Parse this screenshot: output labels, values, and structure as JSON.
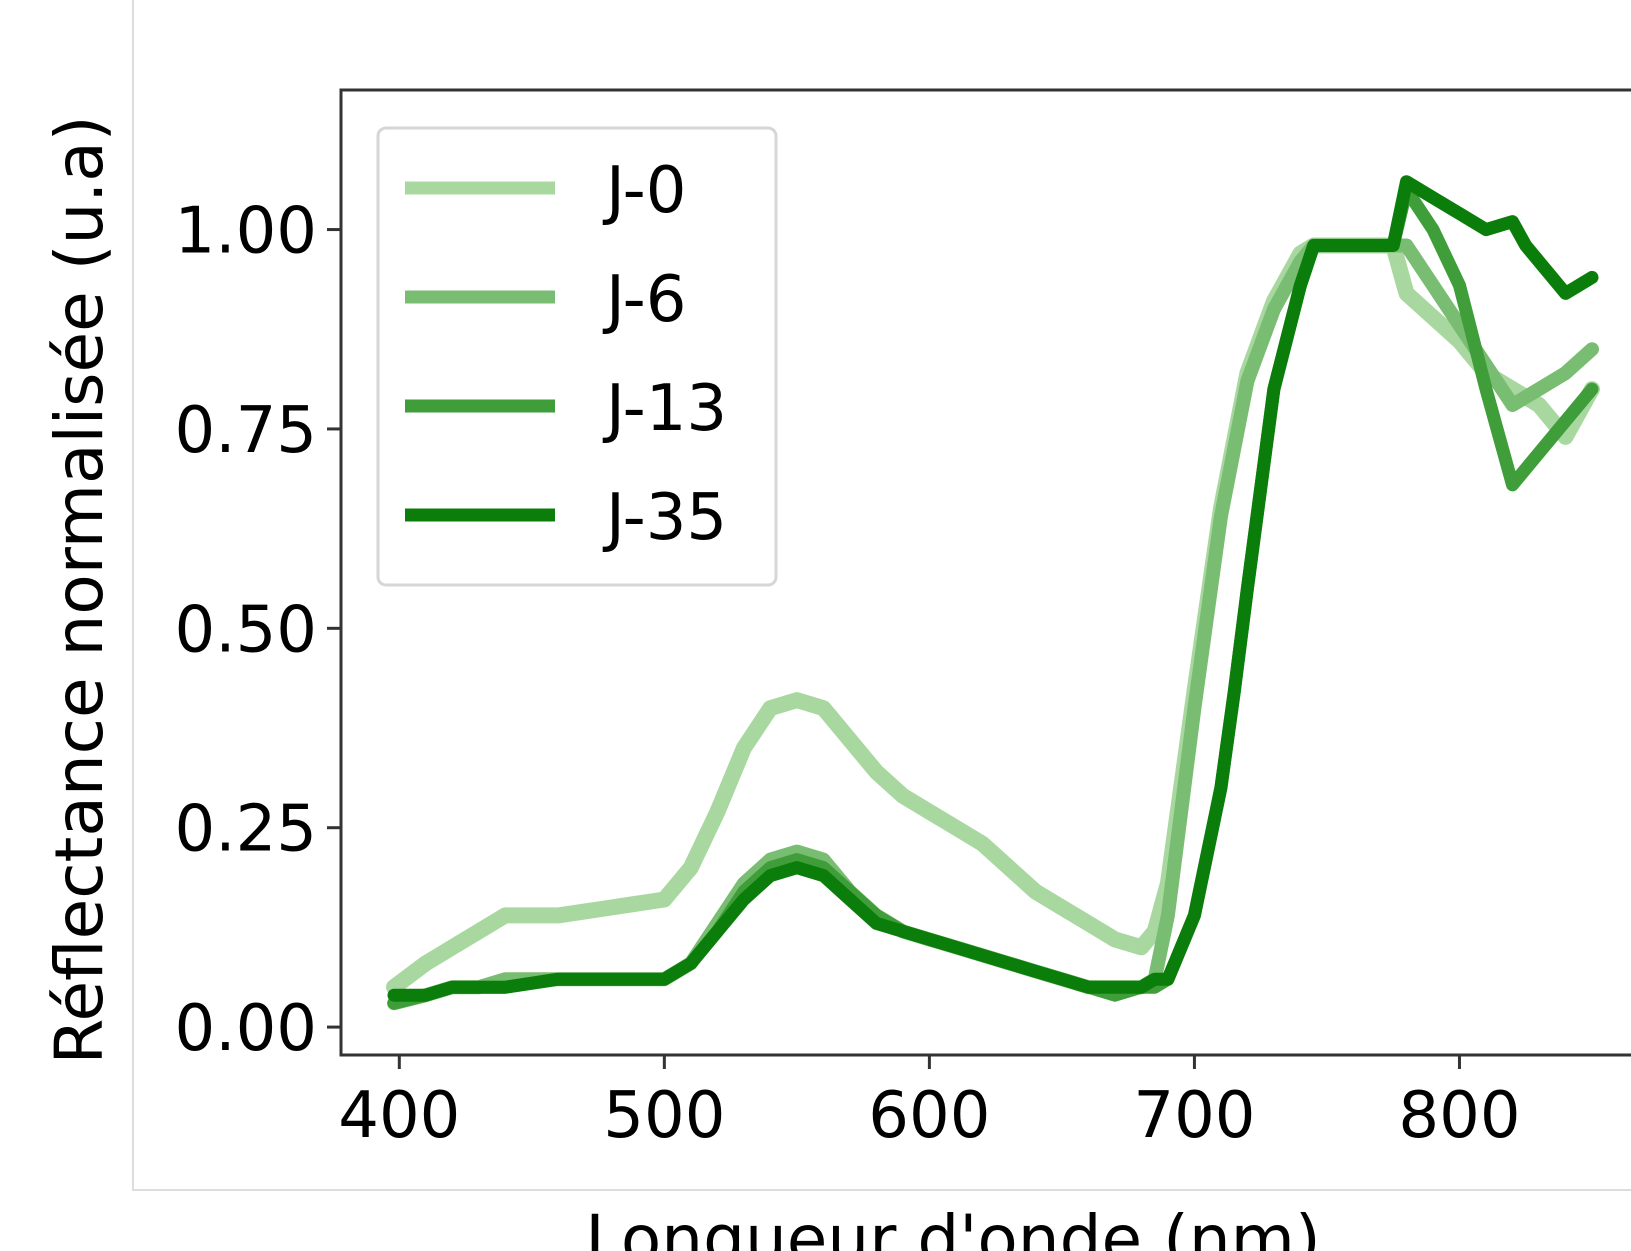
{
  "chart_data": {
    "type": "line",
    "title": "",
    "xlabel": "Longueur d'onde (nm)",
    "ylabel": "Réflectance normalisée (u.a)",
    "xlim": [
      378,
      870
    ],
    "ylim": [
      -0.035,
      1.175
    ],
    "x_ticks": [
      400,
      500,
      600,
      700,
      800
    ],
    "x_tick_labels": [
      "400",
      "500",
      "600",
      "700",
      "800"
    ],
    "y_ticks": [
      0.0,
      0.25,
      0.5,
      0.75,
      1.0
    ],
    "y_tick_labels": [
      "0.00",
      "0.25",
      "0.50",
      "0.75",
      "1.00"
    ],
    "grid": false,
    "legend_position": "top-left",
    "series": [
      {
        "name": "J-0",
        "color": "#a8d8a0",
        "x": [
          398,
          410,
          420,
          430,
          440,
          460,
          480,
          500,
          510,
          520,
          530,
          540,
          550,
          560,
          570,
          580,
          590,
          600,
          610,
          620,
          630,
          640,
          650,
          660,
          670,
          680,
          685,
          690,
          700,
          710,
          720,
          730,
          740,
          745,
          750,
          760,
          770,
          775,
          780,
          790,
          800,
          810,
          820,
          830,
          840,
          850
        ],
        "y": [
          0.05,
          0.08,
          0.1,
          0.12,
          0.14,
          0.14,
          0.15,
          0.16,
          0.2,
          0.27,
          0.35,
          0.4,
          0.41,
          0.4,
          0.36,
          0.32,
          0.29,
          0.27,
          0.25,
          0.23,
          0.2,
          0.17,
          0.15,
          0.13,
          0.11,
          0.1,
          0.12,
          0.18,
          0.42,
          0.65,
          0.82,
          0.91,
          0.97,
          0.98,
          0.98,
          0.98,
          0.98,
          0.98,
          0.92,
          0.89,
          0.86,
          0.82,
          0.8,
          0.78,
          0.74,
          0.8
        ]
      },
      {
        "name": "J-6",
        "color": "#79bd72",
        "x": [
          398,
          410,
          420,
          430,
          440,
          460,
          480,
          500,
          510,
          520,
          530,
          540,
          550,
          560,
          570,
          580,
          590,
          600,
          610,
          620,
          630,
          640,
          650,
          660,
          670,
          680,
          685,
          690,
          700,
          710,
          720,
          730,
          740,
          745,
          750,
          760,
          770,
          775,
          780,
          790,
          800,
          810,
          820,
          830,
          840,
          850
        ],
        "y": [
          0.03,
          0.04,
          0.05,
          0.05,
          0.06,
          0.06,
          0.06,
          0.06,
          0.08,
          0.13,
          0.18,
          0.21,
          0.22,
          0.21,
          0.17,
          0.14,
          0.12,
          0.11,
          0.1,
          0.09,
          0.08,
          0.07,
          0.06,
          0.05,
          0.05,
          0.05,
          0.06,
          0.14,
          0.4,
          0.64,
          0.81,
          0.9,
          0.96,
          0.98,
          0.98,
          0.98,
          0.98,
          0.98,
          0.98,
          0.93,
          0.88,
          0.83,
          0.78,
          0.8,
          0.82,
          0.85
        ]
      },
      {
        "name": "J-13",
        "color": "#3f9e3a",
        "x": [
          398,
          410,
          420,
          430,
          440,
          460,
          480,
          500,
          510,
          520,
          530,
          540,
          550,
          560,
          570,
          580,
          590,
          600,
          610,
          620,
          630,
          640,
          650,
          660,
          670,
          680,
          685,
          690,
          700,
          710,
          715,
          720,
          730,
          740,
          745,
          750,
          760,
          770,
          775,
          780,
          790,
          800,
          810,
          820,
          830,
          840,
          850
        ],
        "y": [
          0.03,
          0.04,
          0.05,
          0.05,
          0.05,
          0.06,
          0.06,
          0.06,
          0.08,
          0.12,
          0.17,
          0.2,
          0.21,
          0.2,
          0.17,
          0.14,
          0.12,
          0.11,
          0.1,
          0.09,
          0.08,
          0.07,
          0.06,
          0.05,
          0.04,
          0.05,
          0.05,
          0.06,
          0.14,
          0.3,
          0.42,
          0.55,
          0.8,
          0.93,
          0.98,
          0.98,
          0.98,
          0.98,
          0.98,
          1.05,
          1.0,
          0.93,
          0.8,
          0.68,
          0.72,
          0.76,
          0.8
        ]
      },
      {
        "name": "J-35",
        "color": "#0b7d0b",
        "x": [
          398,
          410,
          420,
          430,
          440,
          460,
          480,
          500,
          510,
          520,
          530,
          540,
          550,
          560,
          570,
          580,
          590,
          600,
          610,
          620,
          630,
          640,
          650,
          660,
          670,
          680,
          685,
          690,
          700,
          710,
          715,
          720,
          730,
          740,
          745,
          750,
          760,
          770,
          775,
          780,
          790,
          800,
          810,
          820,
          825,
          830,
          840,
          850
        ],
        "y": [
          0.04,
          0.04,
          0.05,
          0.05,
          0.05,
          0.06,
          0.06,
          0.06,
          0.08,
          0.12,
          0.16,
          0.19,
          0.2,
          0.19,
          0.16,
          0.13,
          0.12,
          0.11,
          0.1,
          0.09,
          0.08,
          0.07,
          0.06,
          0.05,
          0.05,
          0.05,
          0.06,
          0.06,
          0.14,
          0.3,
          0.42,
          0.55,
          0.8,
          0.93,
          0.98,
          0.98,
          0.98,
          0.98,
          0.98,
          1.06,
          1.04,
          1.02,
          1.0,
          1.01,
          0.98,
          0.96,
          0.92,
          0.94
        ]
      }
    ]
  }
}
